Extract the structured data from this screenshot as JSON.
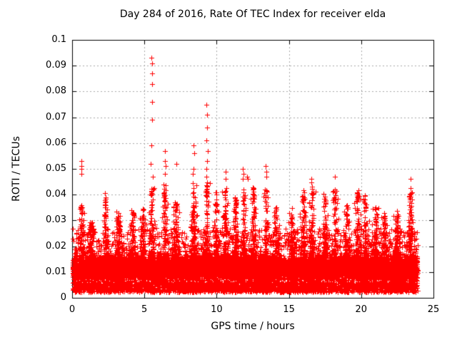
{
  "chart_data": {
    "type": "scatter",
    "title": "Day 284 of 2016, Rate Of TEC Index for receiver elda",
    "xlabel": "GPS time / hours",
    "ylabel": "ROTI / TECUs",
    "xlim": [
      0,
      25
    ],
    "ylim": [
      0,
      0.1
    ],
    "grid": true,
    "legend": "none",
    "marker": "plus",
    "marker_color": "#ff0000",
    "grid_color": "#a8a8a8",
    "border_color": "#000000",
    "background_color": "#ffffff",
    "xticks": [
      {
        "v": 0,
        "label": "0"
      },
      {
        "v": 5,
        "label": "5"
      },
      {
        "v": 10,
        "label": "10"
      },
      {
        "v": 15,
        "label": "15"
      },
      {
        "v": 20,
        "label": "20"
      },
      {
        "v": 25,
        "label": "25"
      }
    ],
    "yticks": [
      {
        "v": 0,
        "label": "0"
      },
      {
        "v": 0.01,
        "label": "0.01"
      },
      {
        "v": 0.02,
        "label": "0.02"
      },
      {
        "v": 0.03,
        "label": "0.03"
      },
      {
        "v": 0.04,
        "label": "0.04"
      },
      {
        "v": 0.05,
        "label": "0.05"
      },
      {
        "v": 0.06,
        "label": "0.06"
      },
      {
        "v": 0.07,
        "label": "0.07"
      },
      {
        "v": 0.08,
        "label": "0.08"
      },
      {
        "v": 0.09,
        "label": "0.09"
      },
      {
        "v": 0.1,
        "label": "0.1"
      }
    ],
    "x_data_range": [
      0.03,
      23.9
    ],
    "dense_band": {
      "y_bottom": 0.0022,
      "y_core_min": 0.004,
      "y_core_max": 0.018,
      "y_top": 0.027,
      "n": 12500
    },
    "bursts": [
      {
        "x": 0.65,
        "h": 0.036
      },
      {
        "x": 1.25,
        "h": 0.031
      },
      {
        "x": 2.3,
        "h": 0.041
      },
      {
        "x": 3.2,
        "h": 0.034
      },
      {
        "x": 4.2,
        "h": 0.036
      },
      {
        "x": 4.9,
        "h": 0.035
      },
      {
        "x": 5.5,
        "h": 0.045
      },
      {
        "x": 6.4,
        "h": 0.044
      },
      {
        "x": 7.2,
        "h": 0.039
      },
      {
        "x": 8.4,
        "h": 0.045
      },
      {
        "x": 9.32,
        "h": 0.045
      },
      {
        "x": 9.95,
        "h": 0.041
      },
      {
        "x": 10.6,
        "h": 0.043
      },
      {
        "x": 11.3,
        "h": 0.04
      },
      {
        "x": 11.85,
        "h": 0.043
      },
      {
        "x": 12.55,
        "h": 0.043
      },
      {
        "x": 13.4,
        "h": 0.044
      },
      {
        "x": 14.1,
        "h": 0.036
      },
      {
        "x": 15.2,
        "h": 0.035
      },
      {
        "x": 16.0,
        "h": 0.042
      },
      {
        "x": 16.6,
        "h": 0.045
      },
      {
        "x": 17.5,
        "h": 0.041
      },
      {
        "x": 18.2,
        "h": 0.043
      },
      {
        "x": 19.0,
        "h": 0.036
      },
      {
        "x": 19.75,
        "h": 0.043
      },
      {
        "x": 20.3,
        "h": 0.04
      },
      {
        "x": 21.0,
        "h": 0.036
      },
      {
        "x": 21.6,
        "h": 0.034
      },
      {
        "x": 22.5,
        "h": 0.034
      },
      {
        "x": 23.4,
        "h": 0.043
      }
    ],
    "outliers": [
      [
        0.62,
        0.053
      ],
      [
        0.65,
        0.051
      ],
      [
        0.63,
        0.05
      ],
      [
        0.66,
        0.048
      ],
      [
        5.5,
        0.093
      ],
      [
        5.52,
        0.091
      ],
      [
        5.51,
        0.087
      ],
      [
        5.53,
        0.083
      ],
      [
        5.55,
        0.076
      ],
      [
        5.52,
        0.069
      ],
      [
        5.5,
        0.059
      ],
      [
        5.45,
        0.052
      ],
      [
        5.6,
        0.047
      ],
      [
        6.4,
        0.057
      ],
      [
        6.42,
        0.053
      ],
      [
        6.45,
        0.051
      ],
      [
        6.4,
        0.048
      ],
      [
        7.2,
        0.052
      ],
      [
        8.4,
        0.059
      ],
      [
        8.43,
        0.056
      ],
      [
        8.38,
        0.05
      ],
      [
        8.35,
        0.048
      ],
      [
        9.3,
        0.075
      ],
      [
        9.32,
        0.071
      ],
      [
        9.35,
        0.066
      ],
      [
        9.3,
        0.061
      ],
      [
        9.4,
        0.057
      ],
      [
        9.36,
        0.053
      ],
      [
        9.3,
        0.05
      ],
      [
        9.28,
        0.047
      ],
      [
        10.6,
        0.049
      ],
      [
        10.62,
        0.046
      ],
      [
        11.8,
        0.05
      ],
      [
        11.85,
        0.048
      ],
      [
        11.82,
        0.046
      ],
      [
        12.1,
        0.047
      ],
      [
        12.15,
        0.046
      ],
      [
        13.4,
        0.051
      ],
      [
        13.42,
        0.049
      ],
      [
        13.44,
        0.047
      ],
      [
        16.55,
        0.046
      ],
      [
        18.2,
        0.047
      ],
      [
        23.4,
        0.046
      ]
    ]
  }
}
